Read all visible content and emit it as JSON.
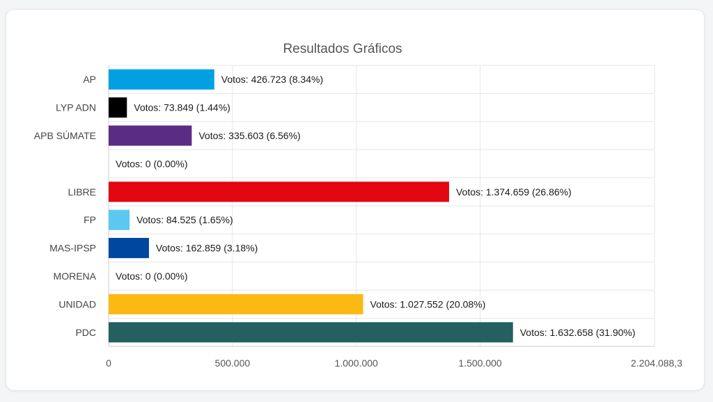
{
  "chart_data": {
    "type": "bar",
    "orientation": "horizontal",
    "title": "Resultados Gráficos",
    "categories": [
      "AP",
      "LYP ADN",
      "APB SÚMATE",
      "",
      "LIBRE",
      "FP",
      "MAS-IPSP",
      "MORENA",
      "UNIDAD",
      "PDC"
    ],
    "values": [
      426723,
      73849,
      335603,
      0,
      1374659,
      84525,
      162859,
      0,
      1027552,
      1632658
    ],
    "bar_labels": [
      "Votos: 426.723 (8.34%)",
      "Votos: 73.849 (1.44%)",
      "Votos: 335.603 (6.56%)",
      "Votos: 0 (0.00%)",
      "Votos: 1.374.659 (26.86%)",
      "Votos: 84.525 (1.65%)",
      "Votos: 162.859 (3.18%)",
      "Votos: 0 (0.00%)",
      "Votos: 1.027.552 (20.08%)",
      "Votos: 1.632.658 (31.90%)"
    ],
    "colors": [
      "#00a0e3",
      "#000000",
      "#5b2c83",
      "#cccccc",
      "#e30613",
      "#5bc8f2",
      "#0047a0",
      "#8b1a1a",
      "#fdb913",
      "#24605f"
    ],
    "xlim": [
      0,
      2204088.3
    ],
    "xticks": [
      0,
      500000,
      1000000,
      1500000,
      2204088.3
    ],
    "xtick_labels": [
      "0",
      "500.000",
      "1.000.000",
      "1.500.000",
      "2.204.088,3"
    ],
    "grid": true,
    "xlabel": "",
    "ylabel": ""
  }
}
